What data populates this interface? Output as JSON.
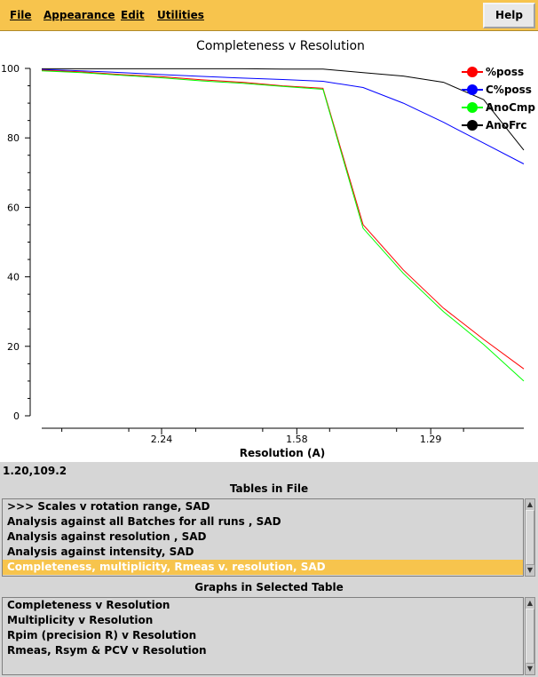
{
  "menu": {
    "file": "File",
    "appearance": "Appearance",
    "edit": "Edit",
    "utilities": "Utilities",
    "help": "Help"
  },
  "status_text": "1.20,109.2",
  "tables_title": "Tables in File",
  "tables": [
    ">>> Scales v rotation range, SAD",
    "Analysis against all Batches for all runs , SAD",
    "Analysis against resolution , SAD",
    "Analysis against intensity, SAD",
    "Completeness, multiplicity, Rmeas v. resolution, SAD"
  ],
  "selected_table_index": 4,
  "graphs_title": "Graphs in Selected Table",
  "graphs": [
    "Completeness v Resolution",
    "Multiplicity v Resolution",
    "Rpim (precision R) v Resolution",
    "Rmeas, Rsym & PCV v Resolution"
  ],
  "chart_data": {
    "type": "line",
    "title": "Completeness v Resolution",
    "xlabel": "Resolution (A)",
    "ylabel": "",
    "x_axis_quantity": "1/d^2",
    "x": [
      0.02,
      0.08,
      0.14,
      0.2,
      0.26,
      0.32,
      0.38,
      0.44,
      0.5,
      0.56,
      0.62,
      0.68,
      0.74
    ],
    "xlim": [
      0.02,
      0.74
    ],
    "ylim": [
      0,
      100
    ],
    "yticks": [
      0,
      20,
      40,
      60,
      80,
      100
    ],
    "xticks": [
      {
        "value": 0.199,
        "label": "2.24"
      },
      {
        "value": 0.401,
        "label": "1.58"
      },
      {
        "value": 0.601,
        "label": "1.29"
      },
      {
        "value": 0.801,
        "label": "1.12"
      }
    ],
    "grid": false,
    "legend_position": "top-right",
    "series": [
      {
        "name": "%poss",
        "color": "#ff0000",
        "values": [
          99.5,
          99.0,
          98.2,
          97.6,
          96.7,
          96.0,
          95.0,
          94.3,
          55.0,
          42.0,
          31.0,
          22.0,
          13.5
        ]
      },
      {
        "name": "C%poss",
        "color": "#0000ff",
        "values": [
          99.7,
          99.3,
          98.8,
          98.2,
          97.7,
          97.2,
          96.8,
          96.3,
          94.5,
          90.0,
          84.5,
          78.5,
          72.5
        ]
      },
      {
        "name": "AnoCmp",
        "color": "#00ff00",
        "values": [
          99.3,
          98.8,
          98.0,
          97.3,
          96.4,
          95.7,
          94.8,
          94.0,
          54.0,
          41.0,
          30.0,
          20.5,
          10.0
        ]
      },
      {
        "name": "AnoFrc",
        "color": "#000000",
        "values": [
          99.9,
          99.9,
          99.9,
          99.9,
          99.9,
          99.9,
          99.8,
          99.8,
          98.8,
          97.8,
          96.0,
          91.0,
          76.5
        ]
      }
    ]
  }
}
